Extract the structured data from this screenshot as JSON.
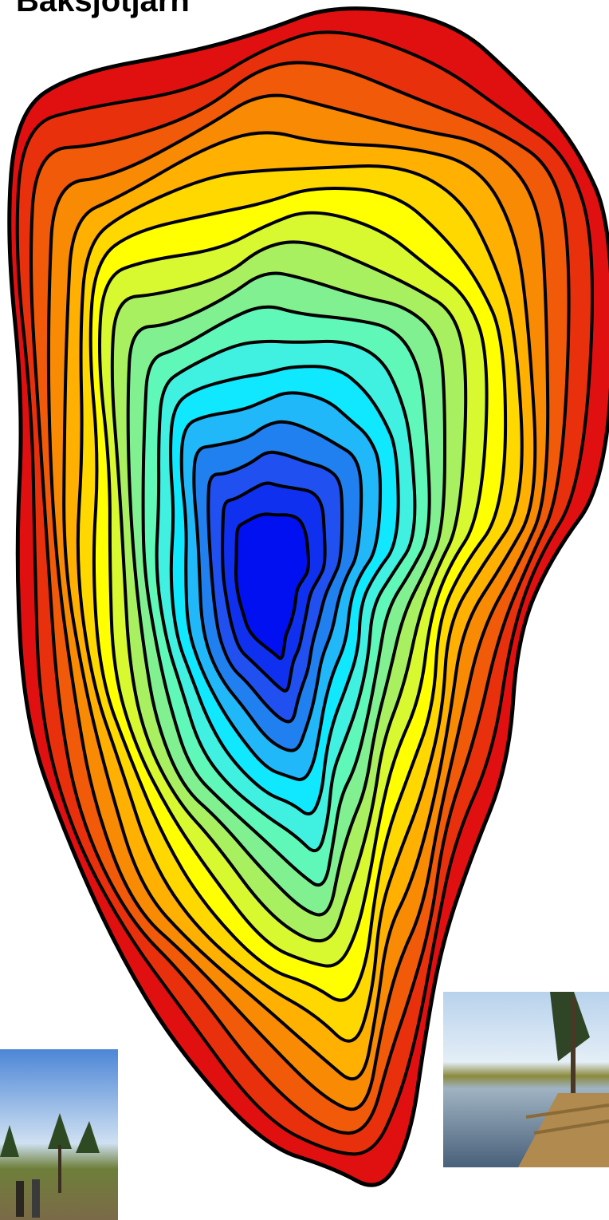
{
  "header": {
    "title": "Baksjötjärn"
  }
}
